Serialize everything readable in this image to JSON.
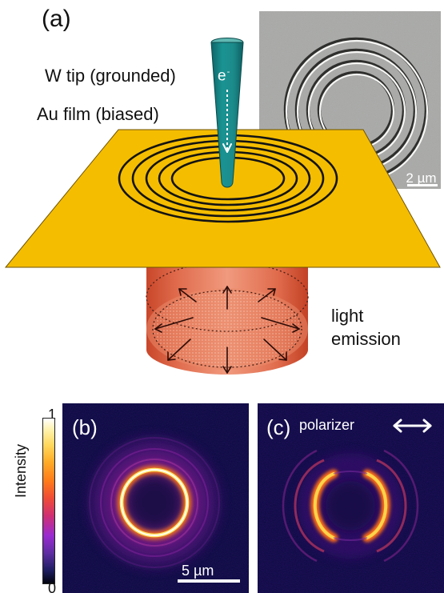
{
  "figure": {
    "panel_a": {
      "label": "(a)",
      "tip_label": "W tip (grounded)",
      "film_label": "Au film (biased)",
      "electron_label": "e",
      "electron_superscript": "-",
      "light_label_line1": "light",
      "light_label_line2": "emission",
      "sem_scale_label": "2 µm"
    },
    "panel_b": {
      "label": "(b)",
      "scale_label": "5 µm"
    },
    "panel_c": {
      "label": "(c)",
      "polarizer_label": "polarizer"
    },
    "colorbar": {
      "top_label": "1",
      "bottom_label": "0",
      "title": "Intensity"
    }
  },
  "colors": {
    "gold": "#f5bd00",
    "tip": "#168b8b",
    "emission": "#d4472c",
    "panel_background": "#090a3e"
  },
  "icons": {
    "double_arrow": "double-headed-horizontal-arrow"
  }
}
